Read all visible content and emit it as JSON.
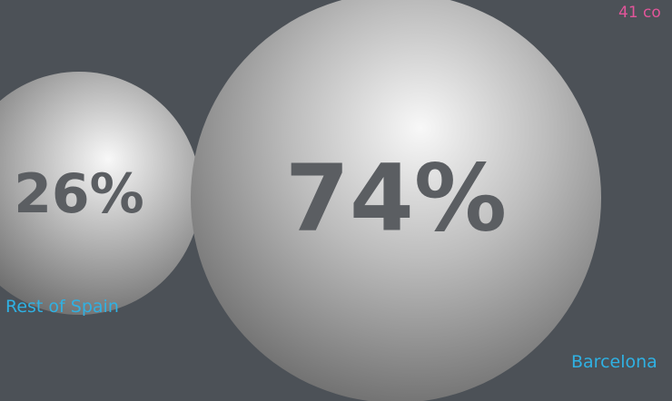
{
  "top_note": "41 co",
  "colors": {
    "background": "#4c5157",
    "bubble_highlight": "#f6f6f6",
    "bubble_shadow": "#6e6e6e",
    "value_text": "#5b5e62",
    "label_text": "#2fb1e3",
    "note_text": "#e2559a"
  },
  "chart_data": {
    "type": "bubble",
    "title": "",
    "categories": [
      "Rest of Spain",
      "Barcelona"
    ],
    "values": [
      26,
      74
    ],
    "value_labels": [
      "26%",
      "74%"
    ],
    "unit": "%"
  }
}
